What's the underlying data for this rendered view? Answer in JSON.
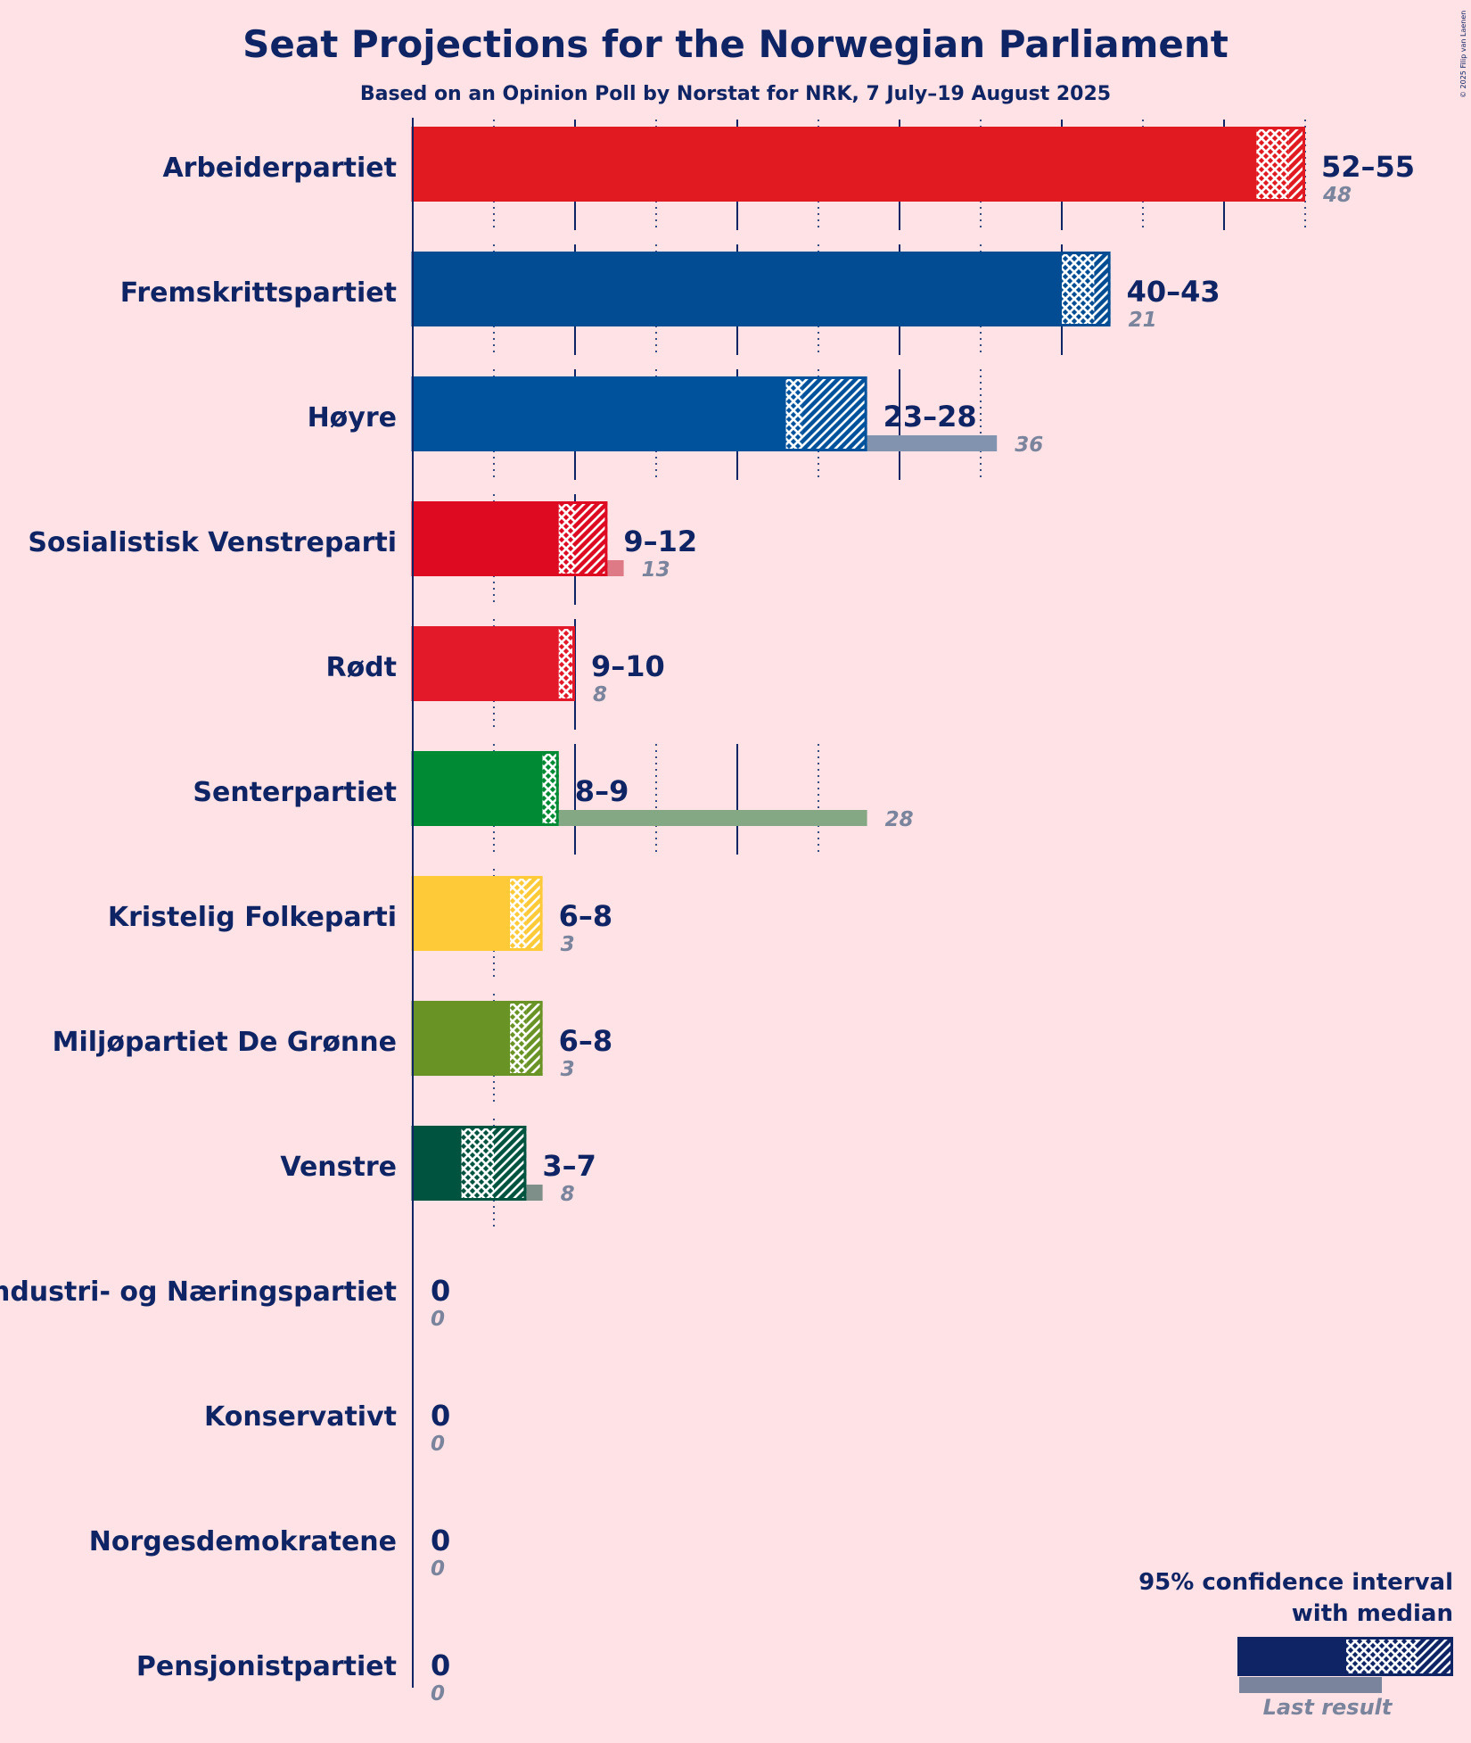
{
  "title": "Seat Projections for the Norwegian Parliament",
  "subtitle": "Based on an Opinion Poll by Norstat for NRK, 7 July–19 August 2025",
  "credit": "© 2025 Filip van Laenen",
  "legend": {
    "title_line1": "95% confidence interval",
    "title_line2": "with median",
    "last_result": "Last result"
  },
  "colors": {
    "background": "#FFE2E6",
    "text": "#0E2464",
    "last_result_text": "#7A849C",
    "axis": "#0E2464"
  },
  "chart_data": {
    "type": "bar",
    "orientation": "horizontal",
    "x_unit": "seats",
    "gridlines_solid_every": 10,
    "gridlines_dotted_every": 5,
    "series": [
      {
        "name": "Arbeiderpartiet",
        "low": 52,
        "median": 54,
        "high": 55,
        "range_label": "52–55",
        "last": 48,
        "last_label": "48",
        "color": "#E11A22",
        "last_color": "#DE7A80"
      },
      {
        "name": "Fremskrittspartiet",
        "low": 40,
        "median": 42,
        "high": 43,
        "range_label": "40–43",
        "last": 21,
        "last_label": "21",
        "color": "#024C93",
        "last_color": "#7F8CA8"
      },
      {
        "name": "Høyre",
        "low": 23,
        "median": 24,
        "high": 28,
        "range_label": "23–28",
        "last": 36,
        "last_label": "36",
        "color": "#00529C",
        "last_color": "#8193AE"
      },
      {
        "name": "Sosialistisk Venstreparti",
        "low": 9,
        "median": 10,
        "high": 12,
        "range_label": "9–12",
        "last": 13,
        "last_label": "13",
        "color": "#DD0A22",
        "last_color": "#DE7A86"
      },
      {
        "name": "Rødt",
        "low": 9,
        "median": 9,
        "high": 10,
        "range_label": "9–10",
        "last": 8,
        "last_label": "8",
        "color": "#E3192A",
        "last_color": "#DE7A80"
      },
      {
        "name": "Senterpartiet",
        "low": 8,
        "median": 8,
        "high": 9,
        "range_label": "8–9",
        "last": 28,
        "last_label": "28",
        "color": "#008A34",
        "last_color": "#84A884"
      },
      {
        "name": "Kristelig Folkeparti",
        "low": 6,
        "median": 6,
        "high": 8,
        "range_label": "6–8",
        "last": 3,
        "last_label": "3",
        "color": "#FFCA38",
        "last_color": "#FDD28E"
      },
      {
        "name": "Miljøpartiet De Grønne",
        "low": 6,
        "median": 6,
        "high": 8,
        "range_label": "6–8",
        "last": 3,
        "last_label": "3",
        "color": "#6A9325",
        "last_color": "#A7AD82"
      },
      {
        "name": "Venstre",
        "low": 3,
        "median": 5,
        "high": 7,
        "range_label": "3–7",
        "last": 8,
        "last_label": "8",
        "color": "#00533F",
        "last_color": "#7D8F88"
      },
      {
        "name": "Industri- og Næringspartiet",
        "low": 0,
        "median": 0,
        "high": 0,
        "range_label": "0",
        "last": 0,
        "last_label": "0",
        "color": "#1E3A6A",
        "last_color": "#7A849C"
      },
      {
        "name": "Konservativt",
        "low": 0,
        "median": 0,
        "high": 0,
        "range_label": "0",
        "last": 0,
        "last_label": "0",
        "color": "#1E3A6A",
        "last_color": "#7A849C"
      },
      {
        "name": "Norgesdemokratene",
        "low": 0,
        "median": 0,
        "high": 0,
        "range_label": "0",
        "last": 0,
        "last_label": "0",
        "color": "#1E3A6A",
        "last_color": "#7A849C"
      },
      {
        "name": "Pensjonistpartiet",
        "low": 0,
        "median": 0,
        "high": 0,
        "range_label": "0",
        "last": 0,
        "last_label": "0",
        "color": "#1E3A6A",
        "last_color": "#7A849C"
      }
    ]
  }
}
